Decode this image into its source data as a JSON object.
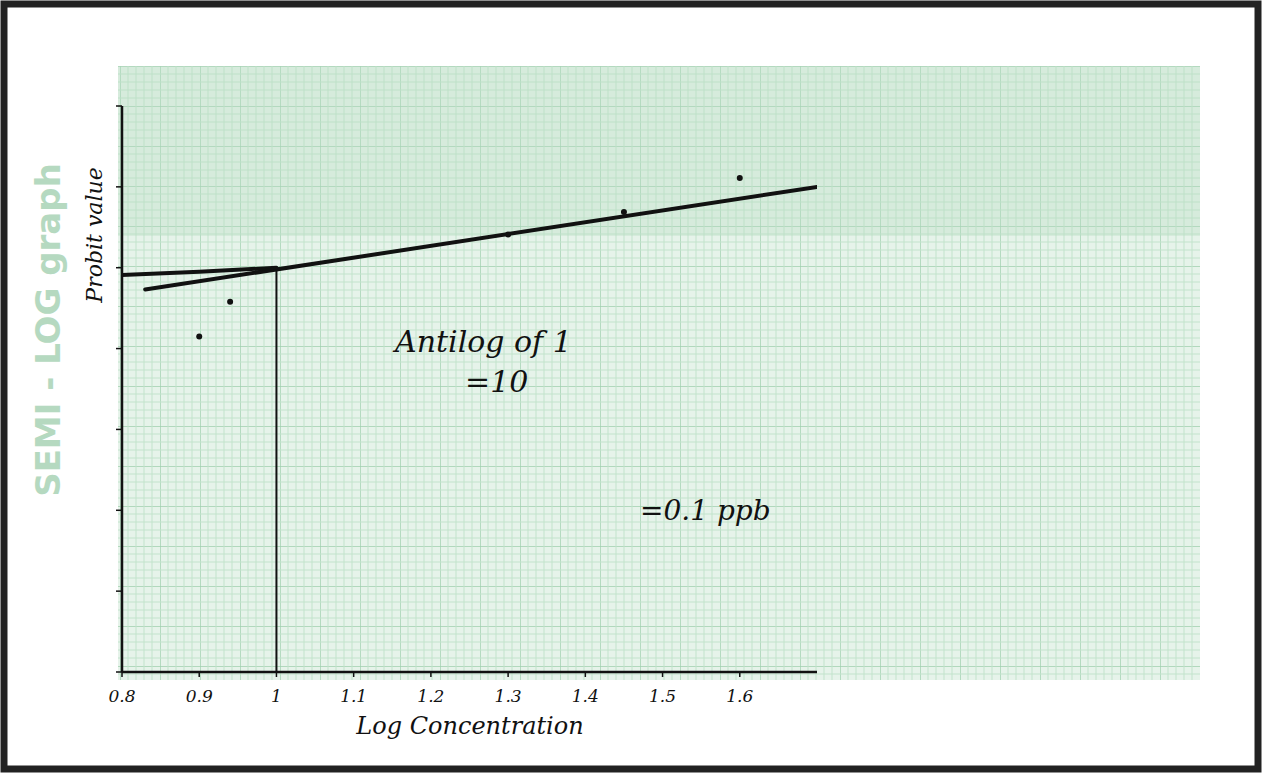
{
  "chart_data": {
    "type": "scatter",
    "title": "SEMI - LOG graph",
    "x_label": "Log Concentration",
    "y_label": "Probit value",
    "xlim": [
      0.8,
      1.7
    ],
    "ylim": [
      0,
      7
    ],
    "xticks": [
      0.8,
      0.9,
      1,
      1.1,
      1.2,
      1.3,
      1.4,
      1.5,
      1.6
    ],
    "yticks": [
      0,
      1,
      2,
      3,
      4,
      5,
      6,
      7
    ],
    "tick_labels": "x",
    "grid": true,
    "color": "#111111",
    "series": [
      {
        "type": "scatter",
        "marker": "dot",
        "x": [
          0.9,
          0.94,
          1.3,
          1.45,
          1.6
        ],
        "values": [
          4.15,
          4.58,
          5.41,
          5.69,
          6.11
        ]
      },
      {
        "type": "line",
        "line_style": "solid",
        "x": [
          0.83,
          1.7
        ],
        "values": [
          4.73,
          6.0
        ]
      },
      {
        "type": "line",
        "line_style": "solid",
        "x": [
          0.8,
          0.9,
          1.0
        ],
        "values": [
          4.91,
          4.95,
          5.0
        ]
      }
    ],
    "drop_line": {
      "x": 1,
      "y": 5
    },
    "annotations": [
      "Antilog of 1",
      "=10",
      "=0.1 ppb"
    ]
  }
}
